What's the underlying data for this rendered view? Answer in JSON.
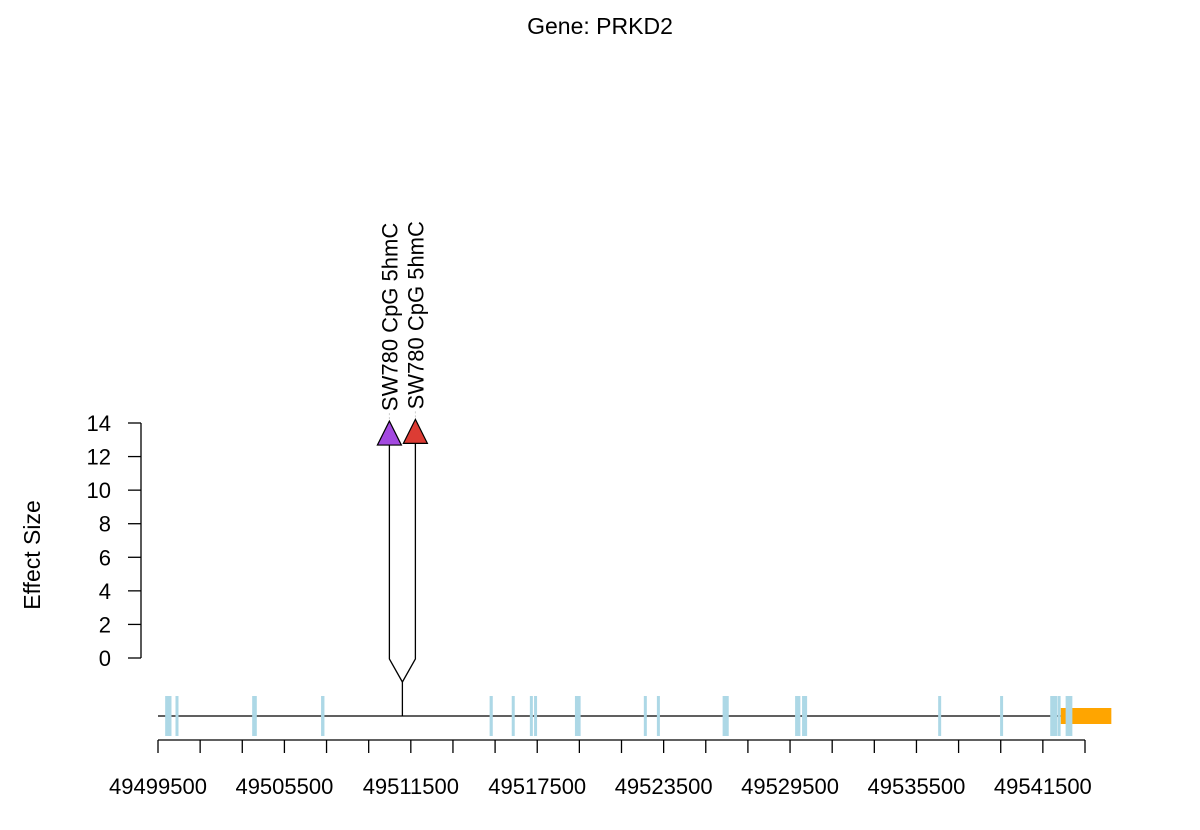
{
  "chart_data": {
    "type": "scatter",
    "title": "Gene: PRKD2",
    "ylabel": "Effect Size",
    "xlabel": "",
    "ylim": [
      0,
      14
    ],
    "yticks": [
      0,
      2,
      4,
      6,
      8,
      10,
      12,
      14
    ],
    "xlim": [
      49499500,
      49543500
    ],
    "x_major_ticks": [
      49499500,
      49505500,
      49511500,
      49517500,
      49523500,
      49529500,
      49535500,
      49541500
    ],
    "x_minor_step": 2000,
    "points": [
      {
        "label": "SW780 CpG 5hmC",
        "effect": 13.4,
        "color": "#A349E0",
        "marker": "triangle-up",
        "genomic_position": 49511100
      },
      {
        "label": "SW780 CpG 5hmC",
        "effect": 13.5,
        "color": "#DC3C34",
        "marker": "triangle-up",
        "genomic_position": 49511100
      }
    ],
    "gene_track": {
      "start": 49499500,
      "end": 49542900,
      "exon_color": "#ADD8E6",
      "utr_color": "#FFA500",
      "exons": [
        [
          49499840,
          49500140
        ],
        [
          49500330,
          49500420
        ],
        [
          49503970,
          49504190
        ],
        [
          49507240,
          49507400
        ],
        [
          49515240,
          49515390
        ],
        [
          49516290,
          49516420
        ],
        [
          49517150,
          49517250
        ],
        [
          49517350,
          49517420
        ],
        [
          49519290,
          49519560
        ],
        [
          49522560,
          49522640
        ],
        [
          49523180,
          49523300
        ],
        [
          49526300,
          49526590
        ],
        [
          49529740,
          49529990
        ],
        [
          49530070,
          49530310
        ],
        [
          49536530,
          49536660
        ],
        [
          49539470,
          49539600
        ],
        [
          49541850,
          49542180
        ],
        [
          49542200,
          49542300
        ],
        [
          49542580,
          49542900
        ]
      ],
      "utr": [
        49542350,
        49544750
      ]
    }
  }
}
